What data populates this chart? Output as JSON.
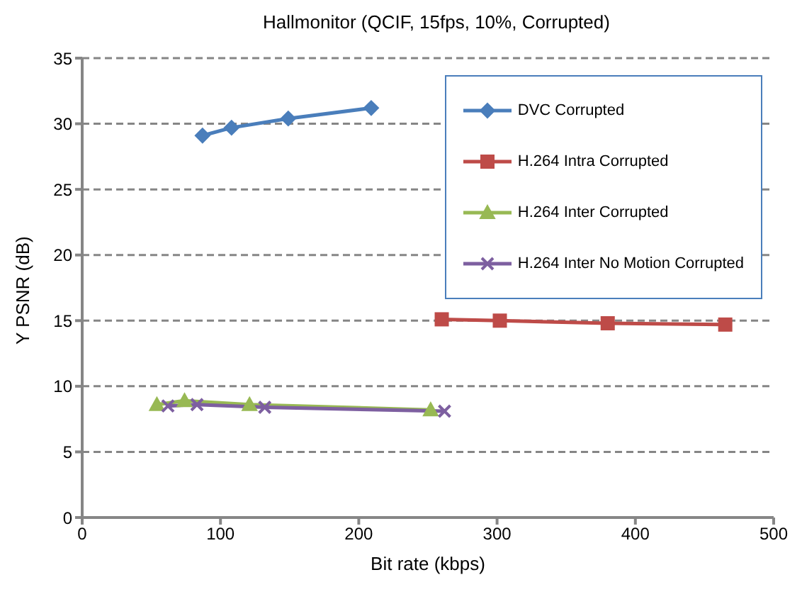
{
  "chart_data": {
    "type": "line",
    "title": "Hallmonitor (QCIF, 15fps, 10%, Corrupted)",
    "xlabel": "Bit rate (kbps)",
    "ylabel": "Y PSNR (dB)",
    "xlim": [
      0,
      500
    ],
    "xticks": [
      0,
      100,
      200,
      300,
      400,
      500
    ],
    "ylim": [
      0,
      35
    ],
    "yticks": [
      0,
      5,
      10,
      15,
      20,
      25,
      30,
      35
    ],
    "grid": "y",
    "legend": "top right",
    "line_style": "solid",
    "series": [
      {
        "name": "DVC Corrupted",
        "color": "#4a7ebb",
        "marker": "diamond",
        "x": [
          87,
          108,
          149,
          209
        ],
        "values": [
          29.1,
          29.7,
          30.4,
          31.2
        ]
      },
      {
        "name": "H.264 Intra Corrupted",
        "color": "#be4b48",
        "marker": "square",
        "x": [
          260,
          302,
          380,
          465
        ],
        "values": [
          15.1,
          15.0,
          14.8,
          14.7
        ]
      },
      {
        "name": "H.264 Inter Corrupted",
        "color": "#98b954",
        "marker": "triangle",
        "x": [
          54,
          74,
          121,
          252
        ],
        "values": [
          8.6,
          8.9,
          8.6,
          8.2
        ]
      },
      {
        "name": "H.264 Inter No Motion Corrupted",
        "color": "#7d5fa0",
        "marker": "cross",
        "x": [
          62,
          83,
          132,
          262
        ],
        "values": [
          8.5,
          8.6,
          8.4,
          8.1
        ]
      }
    ]
  }
}
